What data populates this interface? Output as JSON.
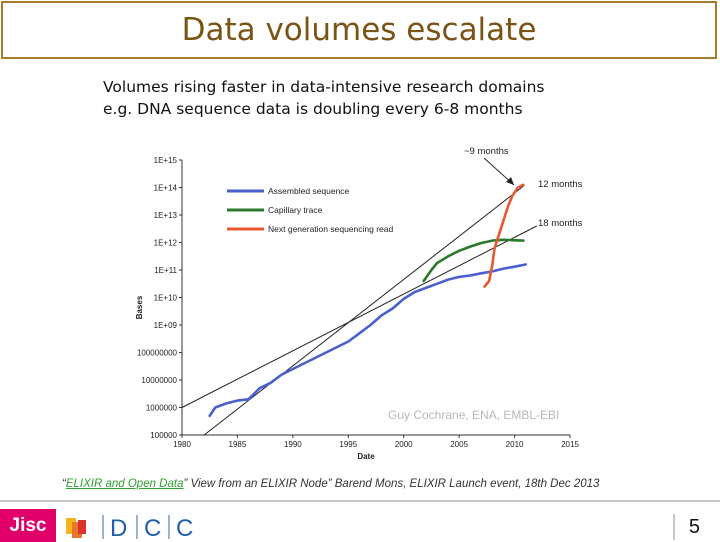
{
  "slide": {
    "title": "Data volumes escalate",
    "subtitle_line1": "Volumes rising faster in data-intensive research domains",
    "subtitle_line2": "e.g. DNA sequence data is doubling every 6-8 months",
    "citation_prefix": "“",
    "citation_link": "ELIXIR and Open Data",
    "citation_rest": "” View from an ELIXIR Node” Barend Mons, ELIXIR Launch event, 18th Dec 2013",
    "page_number": "5"
  },
  "footer": {
    "jisc_label": "Jisc",
    "dcc_letters": [
      "D",
      "C",
      "C"
    ]
  },
  "colors": {
    "title": "#7a5414",
    "border": "#a87a2c",
    "assembled": "#4a5fd0",
    "capillary": "#2b7a2b",
    "nextgen": "#e85830",
    "jisc": "#e1006a",
    "dcc_blue": "#1e5fa8"
  },
  "chart_data": {
    "type": "line",
    "xlabel": "Date",
    "ylabel": "Bases",
    "x_ticks": [
      "1980",
      "1985",
      "1990",
      "1995",
      "2000",
      "2005",
      "2010",
      "2015"
    ],
    "y_ticks": [
      "100000",
      "1000000",
      "10000000",
      "100000000",
      "1E+09",
      "1E+10",
      "1E+11",
      "1E+12",
      "1E+13",
      "1E+14",
      "1E+15"
    ],
    "xlim": [
      1980,
      2015
    ],
    "ylim_log10": [
      5,
      15
    ],
    "watermark": "Guy Cochrane, ENA, EMBL-EBI",
    "annotations": {
      "nine_months": "~9 months",
      "twelve_months": "12 months",
      "eighteen_months": "18 months"
    },
    "series": [
      {
        "name": "Assembled sequence",
        "color": "#4a5fd0",
        "points": [
          [
            1982.5,
            5.7
          ],
          [
            1983,
            6.0
          ],
          [
            1984,
            6.15
          ],
          [
            1985,
            6.25
          ],
          [
            1986,
            6.3
          ],
          [
            1987,
            6.7
          ],
          [
            1988,
            6.9
          ],
          [
            1989,
            7.2
          ],
          [
            1990,
            7.4
          ],
          [
            1991,
            7.6
          ],
          [
            1992,
            7.8
          ],
          [
            1993,
            8.0
          ],
          [
            1994,
            8.2
          ],
          [
            1995,
            8.4
          ],
          [
            1996,
            8.7
          ],
          [
            1997,
            9.0
          ],
          [
            1998,
            9.35
          ],
          [
            1999,
            9.6
          ],
          [
            2000,
            9.95
          ],
          [
            2001,
            10.2
          ],
          [
            2002,
            10.35
          ],
          [
            2003,
            10.5
          ],
          [
            2004,
            10.65
          ],
          [
            2005,
            10.75
          ],
          [
            2006,
            10.8
          ],
          [
            2007,
            10.88
          ],
          [
            2008,
            10.95
          ],
          [
            2009,
            11.05
          ],
          [
            2010,
            11.12
          ],
          [
            2011,
            11.2
          ]
        ]
      },
      {
        "name": "Capillary trace",
        "color": "#2b7a2b",
        "points": [
          [
            2001.8,
            10.6
          ],
          [
            2002.5,
            11.0
          ],
          [
            2003,
            11.25
          ],
          [
            2004,
            11.5
          ],
          [
            2005,
            11.7
          ],
          [
            2006,
            11.85
          ],
          [
            2007,
            11.98
          ],
          [
            2008,
            12.07
          ],
          [
            2009,
            12.1
          ],
          [
            2010,
            12.08
          ],
          [
            2010.8,
            12.07
          ]
        ]
      },
      {
        "name": "Next generation sequencing read",
        "color": "#e85830",
        "points": [
          [
            2007.3,
            10.4
          ],
          [
            2007.7,
            10.6
          ],
          [
            2008,
            11.2
          ],
          [
            2008.2,
            11.8
          ],
          [
            2008.6,
            12.3
          ],
          [
            2009,
            12.8
          ],
          [
            2009.4,
            13.3
          ],
          [
            2009.8,
            13.7
          ],
          [
            2010.3,
            14.0
          ],
          [
            2010.8,
            14.1
          ]
        ]
      }
    ],
    "reference_lines": [
      {
        "label": "12 months",
        "from": [
          1982,
          5.0
        ],
        "to": [
          2010.8,
          14.05
        ]
      },
      {
        "label": "18 months",
        "from": [
          1980,
          6.0
        ],
        "to": [
          2012,
          12.6
        ]
      }
    ]
  }
}
